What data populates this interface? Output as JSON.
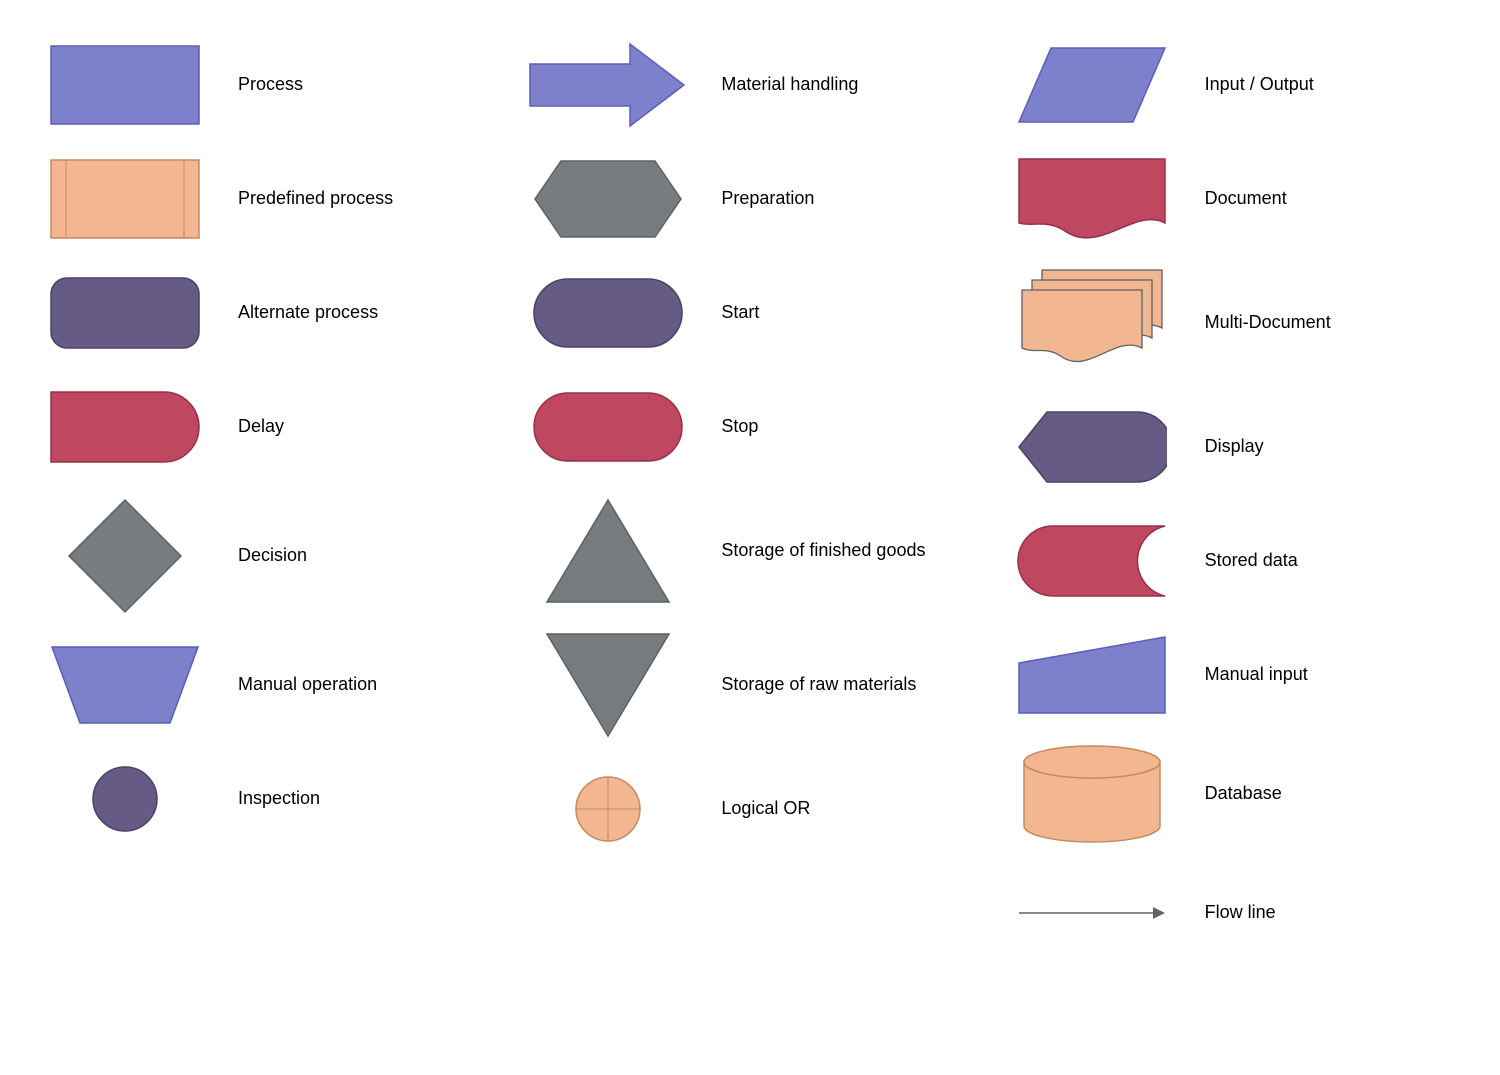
{
  "colors": {
    "blue": "#7d80cb",
    "blue_stroke": "#5a5fb5",
    "peach": "#f2b690",
    "peach_stroke": "#c4895f",
    "purple": "#655b85",
    "purple_stroke": "#4a4266",
    "red": "#c04760",
    "red_stroke": "#953248",
    "gray": "#767c80",
    "gray_stroke": "#5d6266",
    "text": "#000000",
    "bg": "#ffffff"
  },
  "typography": {
    "font_family": "Arial, Helvetica, sans-serif",
    "label_fontsize": 18
  },
  "layout": {
    "columns": 3,
    "shape_cell_width": 170,
    "gap": 28
  },
  "columns": [
    [
      {
        "id": "process",
        "label": "Process",
        "shape": "rect",
        "color": "blue"
      },
      {
        "id": "predef-process",
        "label": "Predefined process",
        "shape": "predef-rect",
        "color": "peach"
      },
      {
        "id": "alt-process",
        "label": "Alternate process",
        "shape": "round-rect",
        "color": "purple"
      },
      {
        "id": "delay",
        "label": "Delay",
        "shape": "delay",
        "color": "red"
      },
      {
        "id": "decision",
        "label": "Decision",
        "shape": "diamond",
        "color": "gray"
      },
      {
        "id": "manual-op",
        "label": "Manual operation",
        "shape": "trapezoid-inv",
        "color": "blue"
      },
      {
        "id": "inspection",
        "label": "Inspection",
        "shape": "circle",
        "color": "purple"
      }
    ],
    [
      {
        "id": "material-hand",
        "label": "Material handling",
        "shape": "arrow-right",
        "color": "blue"
      },
      {
        "id": "preparation",
        "label": "Preparation",
        "shape": "hexagon",
        "color": "gray"
      },
      {
        "id": "start",
        "label": "Start",
        "shape": "pill",
        "color": "purple"
      },
      {
        "id": "stop",
        "label": "Stop",
        "shape": "pill",
        "color": "red"
      },
      {
        "id": "store-finished",
        "label": "Storage of finished goods",
        "shape": "triangle-up",
        "color": "gray"
      },
      {
        "id": "store-raw",
        "label": "Storage of raw materials",
        "shape": "triangle-down",
        "color": "gray"
      },
      {
        "id": "logical-or",
        "label": "Logical OR",
        "shape": "or-circle",
        "color": "peach"
      }
    ],
    [
      {
        "id": "input-output",
        "label": "Input / Output",
        "shape": "parallelogram",
        "color": "blue"
      },
      {
        "id": "document",
        "label": "Document",
        "shape": "document",
        "color": "red"
      },
      {
        "id": "multi-doc",
        "label": "Multi-Document",
        "shape": "multi-document",
        "color": "peach"
      },
      {
        "id": "display",
        "label": "Display",
        "shape": "display",
        "color": "purple"
      },
      {
        "id": "stored-data",
        "label": "Stored data",
        "shape": "stored-data",
        "color": "red"
      },
      {
        "id": "manual-input",
        "label": "Manual input",
        "shape": "manual-input",
        "color": "blue"
      },
      {
        "id": "database",
        "label": "Database",
        "shape": "cylinder",
        "color": "peach"
      },
      {
        "id": "flow-line",
        "label": "Flow line",
        "shape": "flow-line",
        "color": "gray"
      }
    ]
  ]
}
